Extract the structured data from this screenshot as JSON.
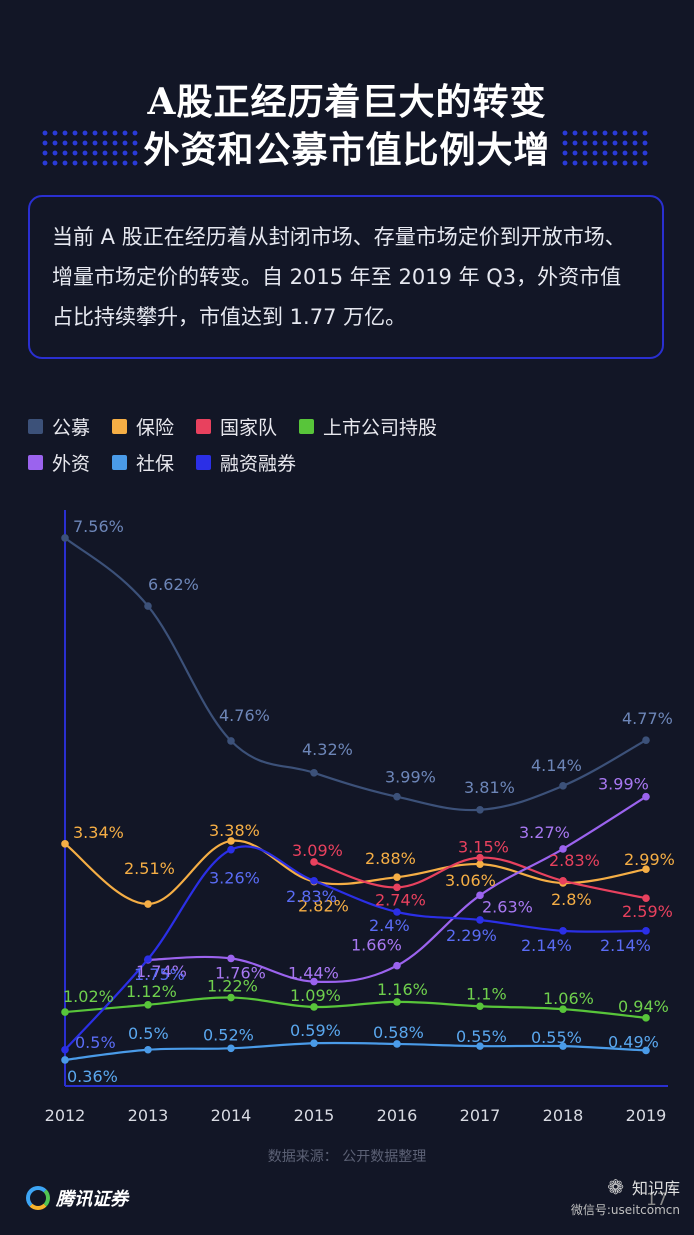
{
  "title": {
    "line1": "A股正经历着巨大的转变",
    "line2": "外资和公募市值比例大增"
  },
  "summary": "当前 A 股正在经历着从封闭市场、存量市场定价到开放市场、增量市场定价的转变。自 2015 年至 2019 年 Q3，外资市值占比持续攀升，市值达到 1.77 万亿。",
  "chart_data": {
    "type": "line",
    "x": [
      "2012",
      "2013",
      "2014",
      "2015",
      "2016",
      "2017",
      "2018",
      "2019"
    ],
    "ylim": [
      0,
      8
    ],
    "unit": "%",
    "grid": false,
    "legend_position": "top-left",
    "series": [
      {
        "name": "公募",
        "color": "#3c5179",
        "label_color": "#6d86b8",
        "values": [
          7.56,
          6.62,
          4.76,
          4.32,
          3.99,
          3.81,
          4.14,
          4.77
        ],
        "labels": [
          "7.56%",
          "6.62%",
          "4.76%",
          "4.32%",
          "3.99%",
          "3.81%",
          "4.14%",
          "4.77%"
        ]
      },
      {
        "name": "保险",
        "color": "#f5ae45",
        "label_color": "#f5ae45",
        "values": [
          3.34,
          2.51,
          3.38,
          2.82,
          2.88,
          3.06,
          2.8,
          2.99
        ],
        "labels": [
          "3.34%",
          "2.51%",
          "3.38%",
          "2.82%",
          "2.88%",
          "3.06%",
          "2.8%",
          "2.99%"
        ]
      },
      {
        "name": "国家队",
        "color": "#e8415e",
        "label_color": "#e8415e",
        "values": [
          null,
          null,
          null,
          3.09,
          2.74,
          3.15,
          2.83,
          2.59
        ],
        "labels": [
          null,
          null,
          null,
          "3.09%",
          "2.74%",
          "3.15%",
          "2.83%",
          "2.59%"
        ]
      },
      {
        "name": "上市公司持股",
        "color": "#58c53a",
        "label_color": "#6fd04d",
        "values": [
          1.02,
          1.12,
          1.22,
          1.09,
          1.16,
          1.1,
          1.06,
          0.94
        ],
        "labels": [
          "1.02%",
          "1.12%",
          "1.22%",
          "1.09%",
          "1.16%",
          "1.1%",
          "1.06%",
          "0.94%"
        ]
      },
      {
        "name": "外资",
        "color": "#9b63ee",
        "label_color": "#a878f2",
        "values": [
          null,
          1.74,
          1.76,
          1.44,
          1.66,
          2.63,
          3.27,
          3.99
        ],
        "labels": [
          null,
          "1.74%",
          "1.76%",
          "1.44%",
          "1.66%",
          "2.63%",
          "3.27%",
          "3.99%"
        ]
      },
      {
        "name": "社保",
        "color": "#4a9be8",
        "label_color": "#5aa7ee",
        "values": [
          0.36,
          0.5,
          0.52,
          0.59,
          0.58,
          0.55,
          0.55,
          0.49
        ],
        "labels": [
          "0.36%",
          "0.5%",
          "0.52%",
          "0.59%",
          "0.58%",
          "0.55%",
          "0.55%",
          "0.49%"
        ]
      },
      {
        "name": "融资融券",
        "color": "#2b2fe6",
        "label_color": "#5a6cf5",
        "values": [
          0.5,
          1.75,
          3.26,
          2.83,
          2.4,
          2.29,
          2.14,
          2.14
        ],
        "labels": [
          "0.5%",
          "1.75%",
          "3.26%",
          "2.83%",
          "2.4%",
          "2.29%",
          "2.14%",
          "2.14%"
        ]
      }
    ]
  },
  "source": "数据来源： 公开数据整理",
  "brand": {
    "logo_text": "腾讯证券"
  },
  "watermark": {
    "name": "知识库",
    "wechat_id": "微信号:useitcomcn",
    "icon": "wechat-icon"
  },
  "page_number": "17"
}
